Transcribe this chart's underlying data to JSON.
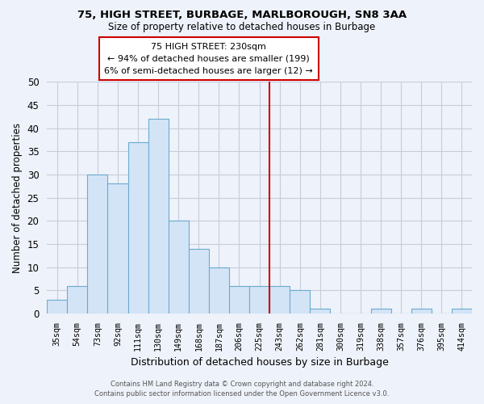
{
  "title1": "75, HIGH STREET, BURBAGE, MARLBOROUGH, SN8 3AA",
  "title2": "Size of property relative to detached houses in Burbage",
  "xlabel": "Distribution of detached houses by size in Burbage",
  "ylabel": "Number of detached properties",
  "bar_labels": [
    "35sqm",
    "54sqm",
    "73sqm",
    "92sqm",
    "111sqm",
    "130sqm",
    "149sqm",
    "168sqm",
    "187sqm",
    "206sqm",
    "225sqm",
    "243sqm",
    "262sqm",
    "281sqm",
    "300sqm",
    "319sqm",
    "338sqm",
    "357sqm",
    "376sqm",
    "395sqm",
    "414sqm"
  ],
  "bar_values": [
    3,
    6,
    30,
    28,
    37,
    42,
    20,
    14,
    10,
    6,
    6,
    6,
    5,
    1,
    0,
    0,
    1,
    0,
    1,
    0,
    1
  ],
  "bar_color": "#d4e4f7",
  "bar_edge_color": "#6aaccf",
  "vline_color": "#cc0000",
  "annotation_title": "75 HIGH STREET: 230sqm",
  "annotation_line1": "← 94% of detached houses are smaller (199)",
  "annotation_line2": "6% of semi-detached houses are larger (12) →",
  "annotation_box_color": "#ffffff",
  "annotation_box_edge": "#cc0000",
  "ylim": [
    0,
    50
  ],
  "yticks": [
    0,
    5,
    10,
    15,
    20,
    25,
    30,
    35,
    40,
    45,
    50
  ],
  "footer1": "Contains HM Land Registry data © Crown copyright and database right 2024.",
  "footer2": "Contains public sector information licensed under the Open Government Licence v3.0.",
  "bg_color": "#eef2fa",
  "grid_color": "#c8cdd8"
}
